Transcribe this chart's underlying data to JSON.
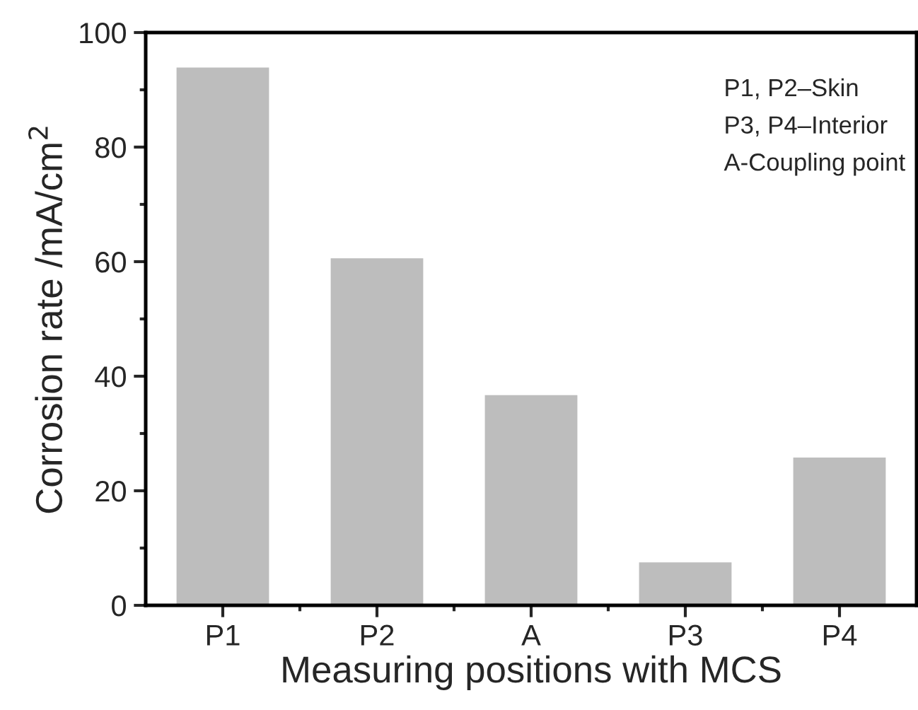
{
  "chart_data": {
    "type": "bar",
    "xlabel": "Measuring positions with MCS",
    "ylabel": "Corrosion rate /mA/cm$^{2}$",
    "categories": [
      "P1",
      "P2",
      "A",
      "P3",
      "P4"
    ],
    "values": [
      93.9,
      60.6,
      36.7,
      7.5,
      25.8
    ],
    "color": "#bdbdbd",
    "ylim": [
      0,
      100
    ],
    "yticks": [
      0,
      20,
      40,
      60,
      80,
      100
    ],
    "grid": false,
    "legend": false,
    "annotations": [
      "P1, P2–Skin",
      "P3, P4–Interior",
      "A-Coupling point"
    ]
  }
}
